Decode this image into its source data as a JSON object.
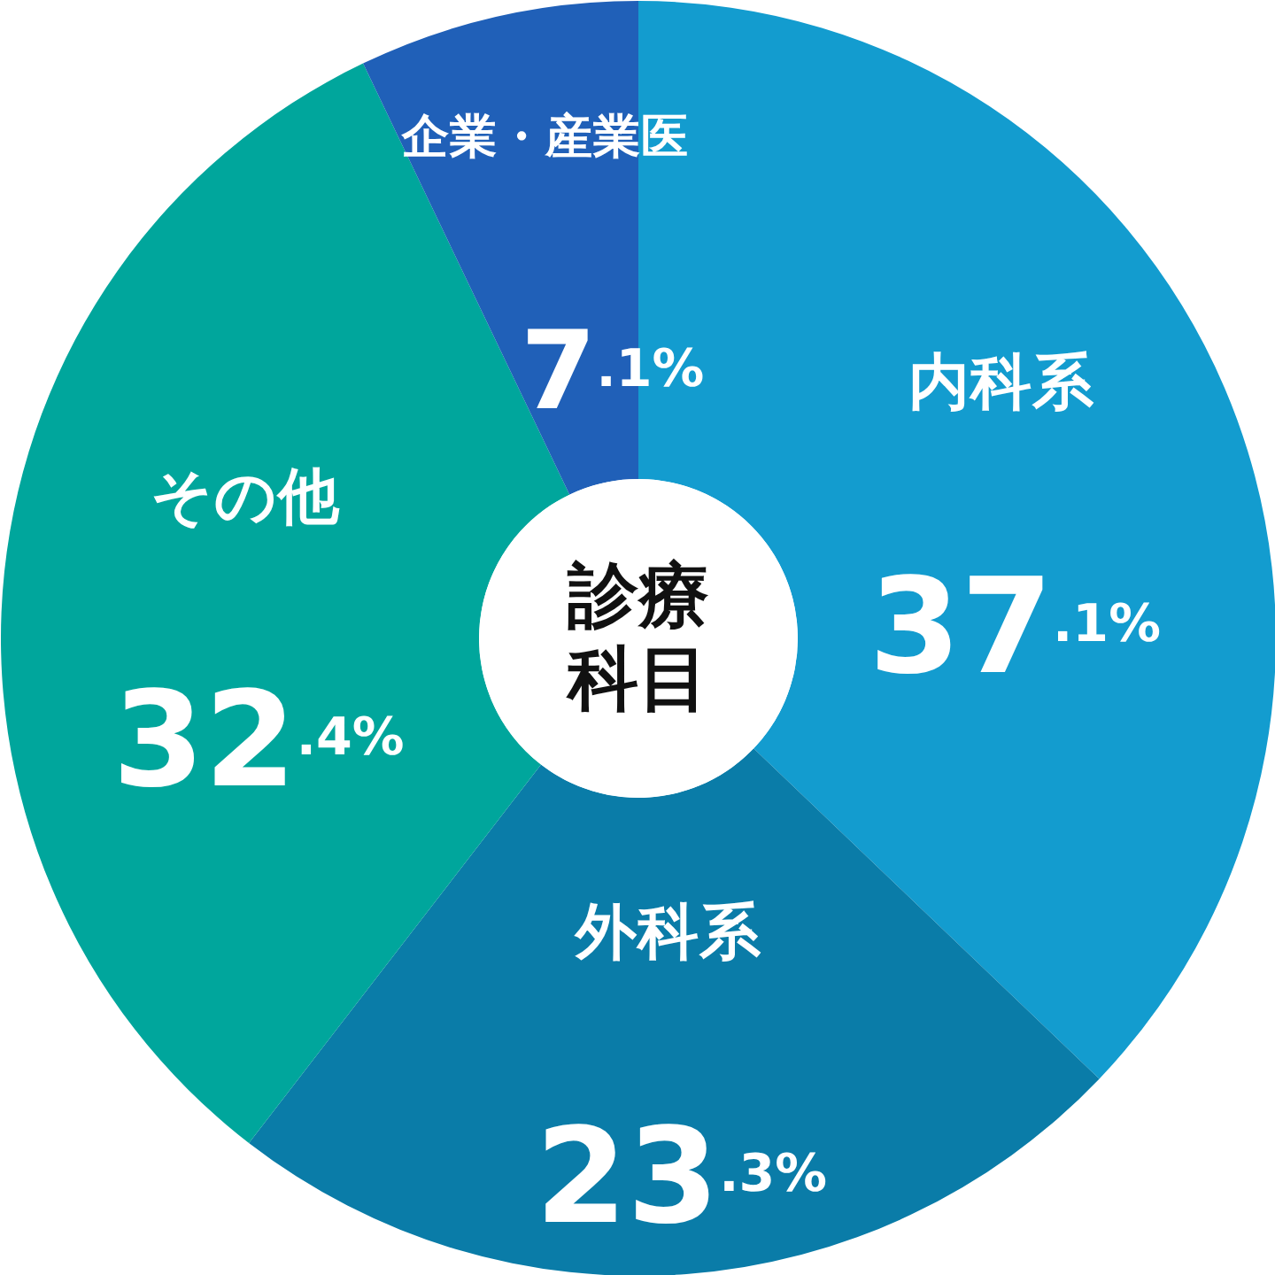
{
  "chart_data": {
    "type": "donut",
    "title": "診療科目",
    "categories": [
      "内科系",
      "外科系",
      "その他",
      "企業・産業医"
    ],
    "values": [
      37.1,
      23.3,
      32.4,
      7.1
    ],
    "colors": [
      "#139ccf",
      "#0a7ca8",
      "#00a69c",
      "#2060b8"
    ],
    "value_labels": [
      "37.1%",
      "23.3%",
      "32.4%",
      "7.1%"
    ]
  }
}
